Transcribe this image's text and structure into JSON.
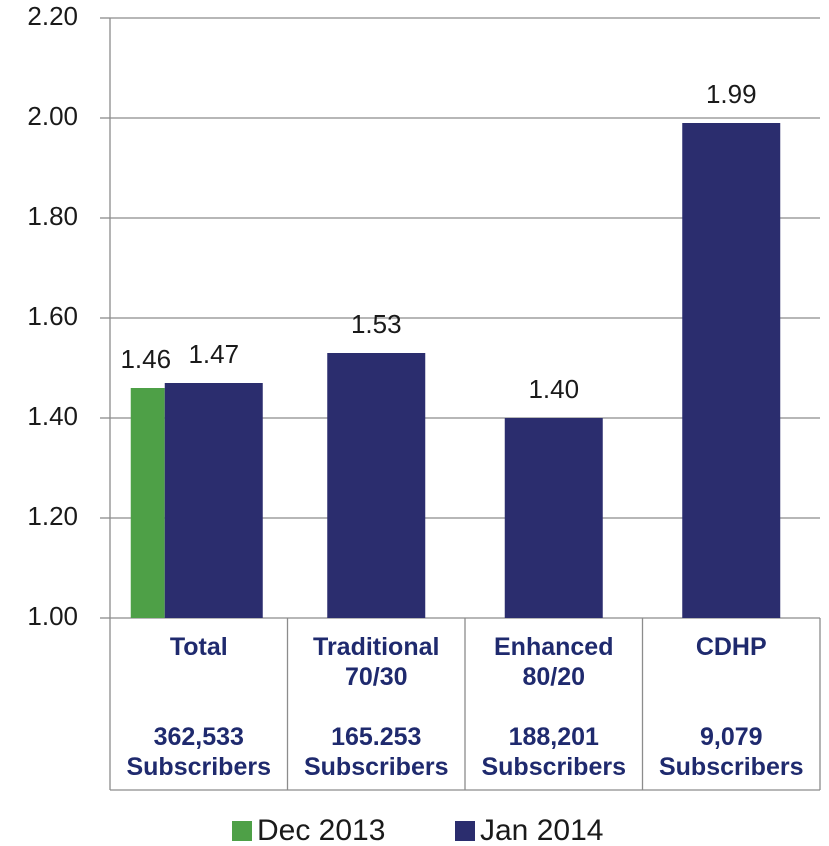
{
  "chart_data": {
    "type": "bar",
    "categories": [
      "Total",
      "Traditional 70/30",
      "Enhanced 80/20",
      "CDHP"
    ],
    "subscribers": [
      "362,533 Subscribers",
      "165.253 Subscribers",
      "188,201 Subscribers",
      "9,079 Subscribers"
    ],
    "series": [
      {
        "name": "Dec 2013",
        "color": "#4ea047",
        "values": [
          1.46,
          null,
          null,
          null
        ],
        "value_labels": [
          "1.46",
          null,
          null,
          null
        ]
      },
      {
        "name": "Jan 2014",
        "color": "#2b2d6e",
        "values": [
          1.47,
          1.53,
          1.4,
          1.99
        ],
        "value_labels": [
          "1.47",
          "1.53",
          "1.40",
          "1.99"
        ]
      }
    ],
    "ylim": [
      1.0,
      2.2
    ],
    "yticks": [
      {
        "value": 1.0,
        "label": "1.00"
      },
      {
        "value": 1.2,
        "label": "1.20"
      },
      {
        "value": 1.4,
        "label": "1.40"
      },
      {
        "value": 1.6,
        "label": "1.60"
      },
      {
        "value": 1.8,
        "label": "1.80"
      },
      {
        "value": 2.0,
        "label": "2.00"
      },
      {
        "value": 2.2,
        "label": "2.20"
      }
    ],
    "grid": true
  }
}
